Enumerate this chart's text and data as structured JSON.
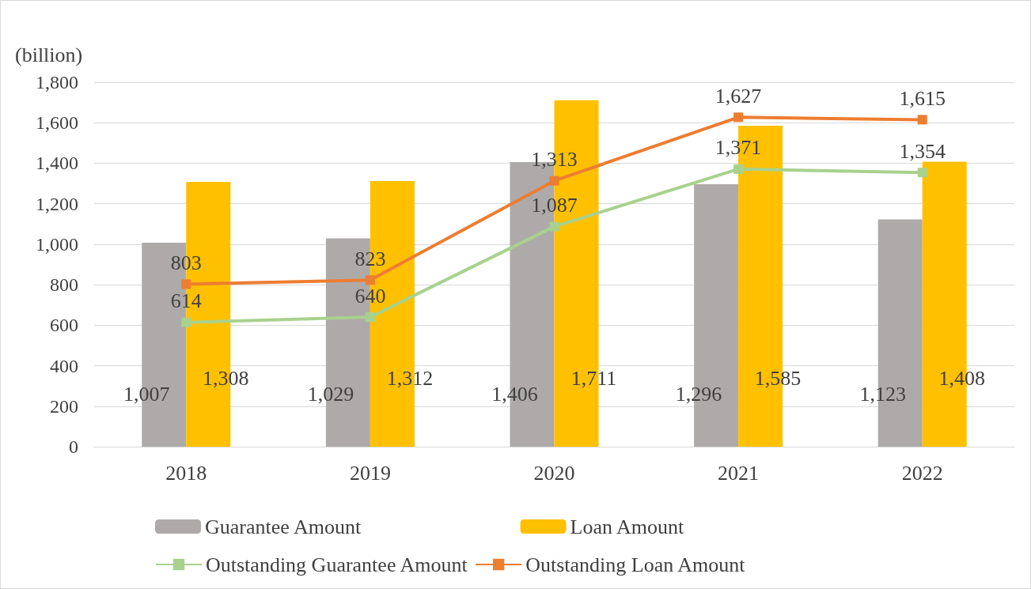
{
  "chart_data": {
    "type": "bar",
    "ylabel": "(billion)",
    "categories": [
      "2018",
      "2019",
      "2020",
      "2021",
      "2022"
    ],
    "series": [
      {
        "name": "Guarantee Amount",
        "color": "#aeaaaa",
        "values": [
          1007,
          1029,
          1406,
          1296,
          1123
        ],
        "value_labels": [
          "1,007",
          "1,029",
          "1,406",
          "1,296",
          "1,123"
        ]
      },
      {
        "name": "Loan Amount",
        "color": "#ffc000",
        "values": [
          1308,
          1312,
          1711,
          1585,
          1408
        ],
        "value_labels": [
          "1,308",
          "1,312",
          "1,711",
          "1,585",
          "1,408"
        ]
      },
      {
        "name": "Outstanding Guarantee Amount",
        "type": "line",
        "color": "#a9d18e",
        "values": [
          614,
          640,
          1087,
          1371,
          1354
        ],
        "value_labels": [
          "614",
          "640",
          "1,087",
          "1,371",
          "1,354"
        ]
      },
      {
        "name": "Outstanding Loan Amount",
        "type": "line",
        "color": "#ed7d31",
        "values": [
          803,
          823,
          1313,
          1627,
          1615
        ],
        "value_labels": [
          "803",
          "823",
          "1,313",
          "1,627",
          "1,615"
        ]
      }
    ],
    "ylim": [
      0,
      1800
    ],
    "yticks": [
      0,
      200,
      400,
      600,
      800,
      {
        "value": 1000,
        "label": "1,000"
      },
      {
        "value": 1200,
        "label": "1,200"
      },
      {
        "value": 1400,
        "label": "1,400"
      },
      {
        "value": 1600,
        "label": "1,600"
      },
      {
        "value": 1800,
        "label": "1,800"
      }
    ],
    "grid": "y",
    "legend": "bottom",
    "marker": "square",
    "line_style": "solid"
  }
}
